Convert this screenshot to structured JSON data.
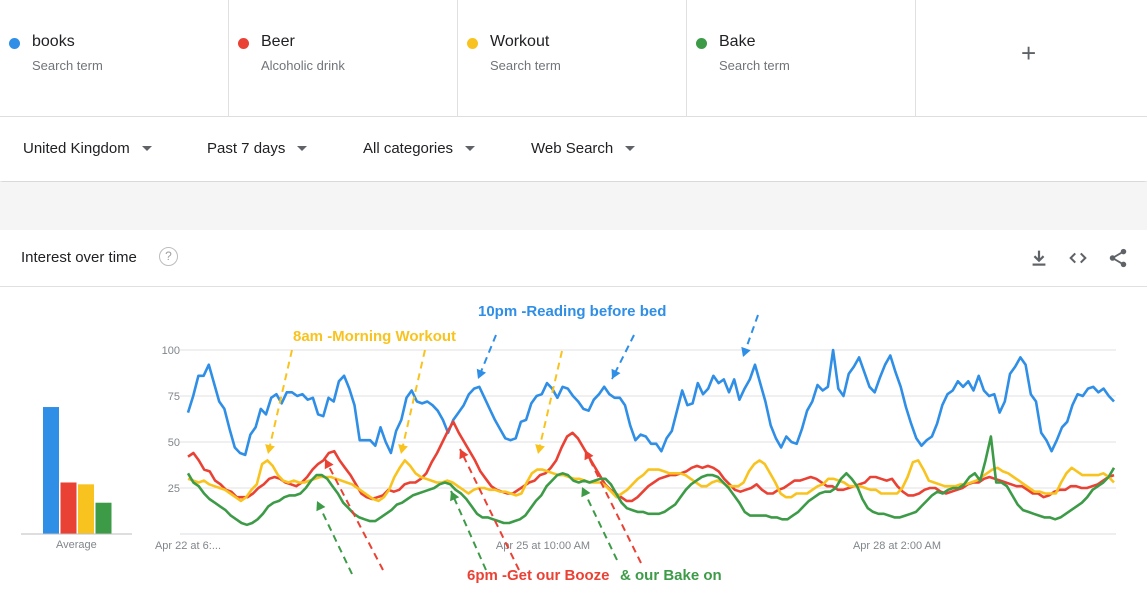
{
  "terms": [
    {
      "name": "books",
      "sub": "Search term",
      "color": "#2f8ee5"
    },
    {
      "name": "Beer",
      "sub": "Alcoholic drink",
      "color": "#e94235"
    },
    {
      "name": "Workout",
      "sub": "Search term",
      "color": "#f9c31f"
    },
    {
      "name": "Bake",
      "sub": "Search term",
      "color": "#3d9b48"
    }
  ],
  "add_label": "+",
  "filters": {
    "region": "United Kingdom",
    "period": "Past 7 days",
    "category": "All categories",
    "search_type": "Web Search"
  },
  "card": {
    "title": "Interest over time",
    "help": "?",
    "icons": [
      "download-icon",
      "embed-icon",
      "share-icon"
    ]
  },
  "average": {
    "label": "Average",
    "values": [
      69,
      28,
      27,
      17
    ]
  },
  "annotations": {
    "workout": "8am -Morning Workout",
    "books": "10pm -Reading before bed",
    "beer": "6pm -Get our Booze",
    "bake": "& our Bake on"
  },
  "chart_data": {
    "type": "line",
    "x_tick_labels": [
      "Apr 22 at 6:...",
      "Apr 25 at 10:00 AM",
      "Apr 28 at 2:00 AM"
    ],
    "yticks": [
      25,
      50,
      75,
      100
    ],
    "ylim": [
      0,
      100
    ],
    "grid": true,
    "series": [
      {
        "name": "books",
        "color": "#2f8ee5",
        "values": [
          66,
          75,
          86,
          86,
          92,
          82,
          72,
          68,
          57,
          47,
          44,
          43,
          54,
          58,
          68,
          65,
          74,
          76,
          71,
          77,
          77,
          75,
          76,
          73,
          74,
          65,
          64,
          74,
          72,
          83,
          86,
          79,
          70,
          51,
          51,
          51,
          48,
          58,
          50,
          44,
          56,
          62,
          74,
          78,
          72,
          71,
          72,
          70,
          67,
          62,
          55,
          62,
          66,
          70,
          76,
          79,
          80,
          74,
          68,
          62,
          57,
          52,
          51,
          52,
          61,
          62,
          71,
          75,
          76,
          82,
          79,
          74,
          80,
          79,
          75,
          72,
          68,
          67,
          73,
          76,
          80,
          76,
          74,
          74,
          70,
          59,
          51,
          54,
          53,
          49,
          49,
          45,
          52,
          56,
          67,
          78,
          70,
          71,
          82,
          76,
          79,
          86,
          82,
          84,
          77,
          84,
          73,
          79,
          84,
          92,
          82,
          72,
          59,
          52,
          47,
          53,
          50,
          49,
          57,
          67,
          72,
          81,
          78,
          80,
          100,
          79,
          75,
          87,
          91,
          96,
          88,
          80,
          77,
          85,
          92,
          97,
          88,
          80,
          69,
          60,
          52,
          48,
          51,
          53,
          60,
          70,
          76,
          78,
          83,
          80,
          83,
          78,
          86,
          78,
          75,
          76,
          66,
          72,
          87,
          91,
          96,
          92,
          76,
          72,
          55,
          51,
          45,
          51,
          58,
          61,
          70,
          76,
          75,
          79,
          80,
          77,
          79,
          75,
          72
        ]
      },
      {
        "name": "Beer",
        "color": "#e94235",
        "values": [
          42,
          44,
          40,
          35,
          34,
          29,
          27,
          24,
          23,
          20,
          20,
          20,
          22,
          25,
          27,
          30,
          31,
          30,
          28,
          27,
          26,
          28,
          31,
          35,
          38,
          40,
          44,
          45,
          40,
          36,
          32,
          27,
          22,
          20,
          19,
          20,
          21,
          24,
          23,
          24,
          27,
          28,
          28,
          30,
          33,
          39,
          44,
          50,
          56,
          61,
          55,
          50,
          45,
          40,
          34,
          30,
          26,
          24,
          23,
          22,
          22,
          24,
          26,
          28,
          29,
          32,
          33,
          36,
          40,
          47,
          53,
          55,
          52,
          47,
          42,
          37,
          32,
          27,
          24,
          22,
          20,
          18,
          18,
          20,
          23,
          26,
          28,
          30,
          31,
          32,
          32,
          33,
          34,
          36,
          37,
          36,
          37,
          36,
          34,
          30,
          27,
          24,
          23,
          24,
          25,
          27,
          24,
          22,
          22,
          24,
          25,
          27,
          29,
          29,
          30,
          31,
          30,
          28,
          26,
          26,
          24,
          24,
          25,
          26,
          27,
          28,
          31,
          31,
          30,
          29,
          30,
          26,
          23,
          21,
          21,
          22,
          24,
          25,
          25,
          23,
          22,
          23,
          24,
          25,
          27,
          28,
          28,
          30,
          31,
          30,
          29,
          28,
          27,
          26,
          26,
          24,
          22,
          22,
          20,
          21,
          23,
          24,
          24,
          26,
          26,
          25,
          25,
          26,
          27,
          29,
          31,
          32
        ]
      },
      {
        "name": "Workout",
        "color": "#f9c31f",
        "values": [
          30,
          29,
          28,
          29,
          27,
          26,
          25,
          24,
          22,
          20,
          18,
          20,
          24,
          27,
          38,
          40,
          37,
          32,
          29,
          28,
          29,
          28,
          28,
          29,
          30,
          31,
          31,
          31,
          30,
          29,
          28,
          27,
          25,
          23,
          21,
          19,
          18,
          20,
          24,
          31,
          36,
          40,
          37,
          33,
          31,
          30,
          29,
          28,
          28,
          29,
          28,
          26,
          24,
          22,
          24,
          25,
          25,
          24,
          24,
          23,
          23,
          22,
          21,
          22,
          28,
          33,
          35,
          35,
          34,
          33,
          32,
          32,
          31,
          30,
          30,
          29,
          28,
          28,
          28,
          26,
          23,
          20,
          22,
          24,
          27,
          30,
          32,
          35,
          35,
          35,
          34,
          33,
          33,
          33,
          32,
          30,
          28,
          26,
          26,
          28,
          29,
          28,
          26,
          26,
          26,
          28,
          34,
          38,
          40,
          38,
          33,
          28,
          22,
          20,
          20,
          22,
          22,
          22,
          24,
          26,
          27,
          30,
          30,
          29,
          28,
          26,
          26,
          26,
          25,
          24,
          24,
          22,
          22,
          22,
          22,
          25,
          31,
          39,
          40,
          35,
          29,
          28,
          27,
          26,
          26,
          26,
          27,
          27,
          28,
          29,
          31,
          33,
          35,
          36,
          34,
          33,
          31,
          29,
          27,
          25,
          23,
          23,
          22,
          22,
          22,
          28,
          33,
          36,
          34,
          32,
          32,
          32,
          32,
          33,
          31,
          28
        ]
      },
      {
        "name": "Bake",
        "color": "#3d9b48",
        "values": [
          33,
          28,
          26,
          22,
          19,
          17,
          15,
          13,
          10,
          8,
          6,
          5,
          6,
          8,
          11,
          15,
          17,
          18,
          20,
          21,
          21,
          22,
          25,
          29,
          32,
          32,
          30,
          26,
          22,
          17,
          14,
          11,
          9,
          8,
          7,
          7,
          9,
          11,
          13,
          16,
          17,
          19,
          21,
          22,
          23,
          24,
          25,
          27,
          28,
          27,
          24,
          22,
          19,
          15,
          11,
          9,
          9,
          8,
          7,
          6,
          6,
          7,
          8,
          10,
          14,
          18,
          21,
          26,
          29,
          32,
          33,
          32,
          29,
          28,
          29,
          28,
          29,
          30,
          30,
          27,
          22,
          17,
          14,
          13,
          12,
          12,
          11,
          11,
          11,
          12,
          14,
          16,
          20,
          24,
          27,
          29,
          31,
          32,
          32,
          31,
          28,
          25,
          21,
          17,
          12,
          10,
          10,
          10,
          10,
          9,
          9,
          8,
          8,
          10,
          12,
          15,
          18,
          20,
          22,
          23,
          23,
          25,
          30,
          33,
          30,
          26,
          19,
          14,
          12,
          11,
          11,
          10,
          9,
          9,
          10,
          11,
          12,
          15,
          18,
          21,
          23,
          22,
          24,
          25,
          25,
          27,
          31,
          33,
          29,
          40,
          53,
          28,
          28,
          26,
          21,
          16,
          13,
          12,
          11,
          10,
          9,
          9,
          8,
          9,
          11,
          13,
          15,
          17,
          20,
          24,
          26,
          28,
          31,
          36
        ]
      }
    ]
  }
}
